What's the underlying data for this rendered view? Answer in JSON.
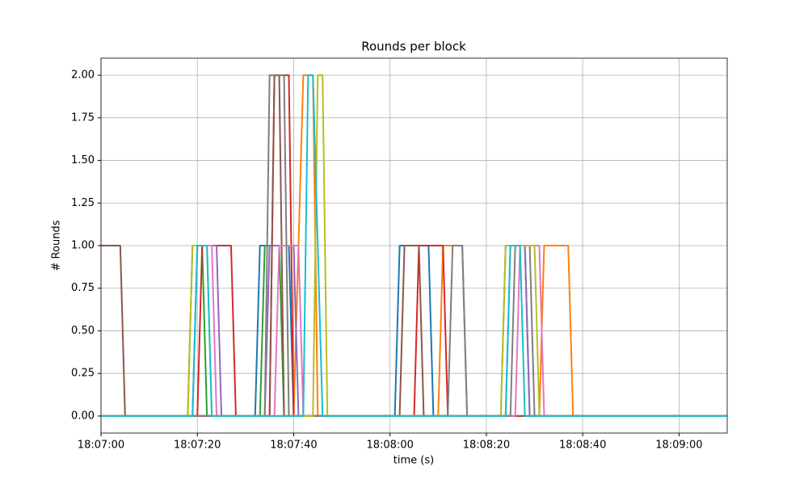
{
  "chart_data": {
    "type": "line",
    "title": "Rounds per block",
    "x_label": "time (s)",
    "y_label": "# Rounds",
    "xlim": [
      "18:07:00",
      "18:09:10"
    ],
    "xticks": [
      "18:07:00",
      "18:07:20",
      "18:07:40",
      "18:08:00",
      "18:08:20",
      "18:08:40",
      "18:09:00"
    ],
    "ylim": [
      -0.1,
      2.1
    ],
    "yticks": [
      {
        "value": 0,
        "label": "0.00"
      },
      {
        "value": 0.25,
        "label": "0.25"
      },
      {
        "value": 0.5,
        "label": "0.50"
      },
      {
        "value": 0.75,
        "label": "0.75"
      },
      {
        "value": 1,
        "label": "1.00"
      },
      {
        "value": 1.25,
        "label": "1.25"
      },
      {
        "value": 1.5,
        "label": "1.50"
      },
      {
        "value": 1.75,
        "label": "1.75"
      },
      {
        "value": 2,
        "label": "2.00"
      }
    ],
    "grid": true,
    "series": [
      {
        "color": "#1f77b4",
        "x": [
          "18:07:00",
          "18:07:32",
          "18:07:33",
          "18:07:39",
          "18:07:40",
          "18:08:01",
          "18:08:02",
          "18:08:08",
          "18:08:09",
          "18:09:10"
        ],
        "values": [
          0,
          0,
          1,
          1,
          0,
          0,
          1,
          1,
          0,
          0
        ]
      },
      {
        "color": "#ff7f0e",
        "x": [
          "18:07:00",
          "18:07:40",
          "18:07:42",
          "18:07:44",
          "18:07:45",
          "18:08:10",
          "18:08:11",
          "18:08:15",
          "18:08:16",
          "18:08:31",
          "18:08:32",
          "18:08:37",
          "18:08:38",
          "18:09:10"
        ],
        "values": [
          0,
          0,
          2,
          2,
          0,
          0,
          1,
          1,
          0,
          0,
          1,
          1,
          0,
          0
        ]
      },
      {
        "color": "#2ca02c",
        "x": [
          "18:07:00",
          "18:07:18",
          "18:07:19",
          "18:07:21",
          "18:07:22",
          "18:07:33",
          "18:07:34",
          "18:07:37",
          "18:07:38",
          "18:08:23",
          "18:08:24",
          "18:08:28",
          "18:08:29",
          "18:09:10"
        ],
        "values": [
          0,
          0,
          1,
          1,
          0,
          0,
          1,
          1,
          0,
          0,
          1,
          1,
          0,
          0
        ]
      },
      {
        "color": "#d62728",
        "x": [
          "18:07:00",
          "18:07:20",
          "18:07:21",
          "18:07:27",
          "18:07:28",
          "18:07:35",
          "18:07:36",
          "18:07:39",
          "18:07:40",
          "18:08:05",
          "18:08:06",
          "18:08:11",
          "18:08:12",
          "18:09:10"
        ],
        "values": [
          0,
          0,
          1,
          1,
          0,
          0,
          2,
          2,
          0,
          0,
          1,
          1,
          0,
          0
        ]
      },
      {
        "color": "#9467bd",
        "x": [
          "18:07:00",
          "18:07:19",
          "18:07:20",
          "18:07:24",
          "18:07:25",
          "18:07:34",
          "18:07:35",
          "18:07:40",
          "18:07:41",
          "18:08:24",
          "18:08:25",
          "18:08:28",
          "18:08:29",
          "18:09:10"
        ],
        "values": [
          0,
          0,
          1,
          1,
          0,
          0,
          1,
          1,
          0,
          0,
          1,
          1,
          0,
          0
        ]
      },
      {
        "color": "#8c564b",
        "x": [
          "18:07:00",
          "18:07:04",
          "18:07:05",
          "18:07:35",
          "18:07:36",
          "18:07:37",
          "18:07:38",
          "18:08:02",
          "18:08:03",
          "18:08:06",
          "18:08:07",
          "18:09:10"
        ],
        "values": [
          1,
          1,
          0,
          0,
          2,
          2,
          0,
          0,
          1,
          1,
          0,
          0
        ]
      },
      {
        "color": "#e377c2",
        "x": [
          "18:07:00",
          "18:07:19",
          "18:07:20",
          "18:07:23",
          "18:07:24",
          "18:07:36",
          "18:07:37",
          "18:07:41",
          "18:07:42",
          "18:08:26",
          "18:08:27",
          "18:08:31",
          "18:08:32",
          "18:09:10"
        ],
        "values": [
          0,
          0,
          1,
          1,
          0,
          0,
          1,
          1,
          0,
          0,
          1,
          1,
          0,
          0
        ]
      },
      {
        "color": "#7f7f7f",
        "x": [
          "18:07:00",
          "18:07:34",
          "18:07:35",
          "18:07:38",
          "18:07:39",
          "18:08:12",
          "18:08:13",
          "18:08:15",
          "18:08:16",
          "18:08:25",
          "18:08:26",
          "18:08:29",
          "18:08:30",
          "18:09:10"
        ],
        "values": [
          0,
          0,
          2,
          2,
          0,
          0,
          1,
          1,
          0,
          0,
          1,
          1,
          0,
          0
        ]
      },
      {
        "color": "#bcbd22",
        "x": [
          "18:07:00",
          "18:07:18",
          "18:07:19",
          "18:07:22",
          "18:07:23",
          "18:07:44",
          "18:07:45",
          "18:07:46",
          "18:07:47",
          "18:08:23",
          "18:08:24",
          "18:08:30",
          "18:08:31",
          "18:09:10"
        ],
        "values": [
          0,
          0,
          1,
          1,
          0,
          0,
          2,
          2,
          0,
          0,
          1,
          1,
          0,
          0
        ]
      },
      {
        "color": "#17becf",
        "x": [
          "18:07:00",
          "18:07:19",
          "18:07:20",
          "18:07:22",
          "18:07:23",
          "18:07:42",
          "18:07:43",
          "18:07:44",
          "18:07:46",
          "18:08:24",
          "18:08:25",
          "18:08:27",
          "18:08:28",
          "18:09:10"
        ],
        "values": [
          0,
          0,
          1,
          1,
          0,
          0,
          2,
          2,
          0,
          0,
          1,
          1,
          0,
          0
        ]
      }
    ]
  }
}
